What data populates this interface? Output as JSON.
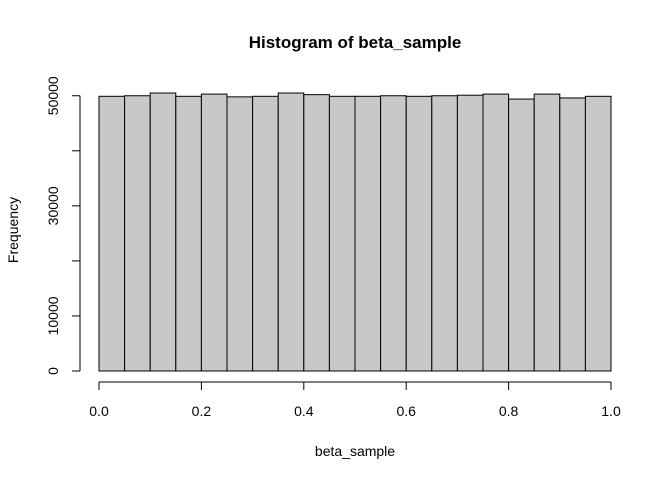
{
  "chart_data": {
    "type": "bar",
    "title": "Histogram of beta_sample",
    "xlabel": "beta_sample",
    "ylabel": "Frequency",
    "bin_edges": [
      0.0,
      0.05,
      0.1,
      0.15,
      0.2,
      0.25,
      0.3,
      0.35,
      0.4,
      0.45,
      0.5,
      0.55,
      0.6,
      0.65,
      0.7,
      0.75,
      0.8,
      0.85,
      0.9,
      0.95,
      1.0
    ],
    "values": [
      49900,
      50000,
      50500,
      49900,
      50300,
      49800,
      49900,
      50500,
      50200,
      49900,
      49900,
      50000,
      49900,
      50000,
      50100,
      50300,
      49400,
      50300,
      49600,
      49900
    ],
    "xlim": [
      0,
      1
    ],
    "ylim": [
      0,
      50500
    ],
    "x_ticks": [
      0.0,
      0.2,
      0.4,
      0.6,
      0.8,
      1.0
    ],
    "x_tick_labels": [
      "0.0",
      "0.2",
      "0.4",
      "0.6",
      "0.8",
      "1.0"
    ],
    "y_ticks": [
      0,
      10000,
      20000,
      30000,
      40000,
      50000
    ],
    "y_tick_labels": [
      "0",
      "10000",
      "",
      "30000",
      "",
      "50000"
    ],
    "bar_color": "#c8c8c8",
    "edge_color": "#000000",
    "grid": false,
    "legend": "none"
  }
}
